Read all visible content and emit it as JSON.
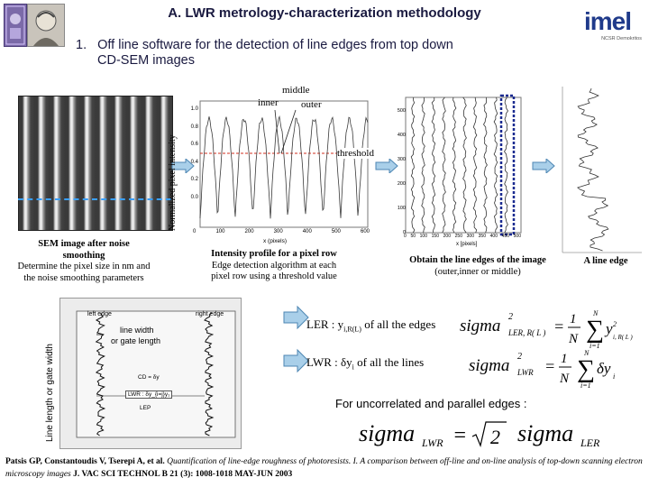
{
  "title": "A. LWR metrology-characterization methodology",
  "heading": {
    "number": "1.",
    "text_line1": "Off line  software for the detection of line edges from top down",
    "text_line2": "CD-SEM images"
  },
  "logos": {
    "left": "university-seal-logo",
    "right": "imel",
    "right_sub": "NCSR Demokritos"
  },
  "sem_panel": {
    "caption_bold1": "SEM image after noise",
    "caption_bold2": "smoothing",
    "caption_line1": "Determine the pixel size in nm and",
    "caption_line2": "the noise smoothing parameters"
  },
  "intensity_panel": {
    "ylabel": "Normalized pixel intensity",
    "xlabel": "x (pixels)",
    "annot_middle": "middle",
    "annot_inner": "inner",
    "annot_outer": "outer",
    "annot_threshold": "threshold",
    "yticks": [
      "1.0",
      "0.8",
      "0.6",
      "0.4",
      "0.2",
      "0.0"
    ],
    "xticks": [
      "0",
      "100",
      "200",
      "300",
      "400",
      "500",
      "600"
    ],
    "caption_bold": "Intensity profile for a pixel row",
    "caption_line1": "Edge detection algorithm at each",
    "caption_line2": "pixel row using a threshold value"
  },
  "edges_panel": {
    "xlabel": "x [pixels]",
    "yticks": [
      "500",
      "400",
      "300",
      "200",
      "100",
      "0"
    ],
    "xticks": [
      "0",
      "50",
      "100",
      "150",
      "200",
      "250",
      "300",
      "350",
      "400",
      "450",
      "500"
    ],
    "caption_bold": "Obtain the line edges of the image",
    "caption_line": "(outer,inner or middle)"
  },
  "single_edge_panel": {
    "caption_bold": "A line edge"
  },
  "lw_panel": {
    "ylabel": "Line length or gate width",
    "left_edge": "left edge",
    "right_edge": "right edge",
    "annot_width": "line width",
    "annot_width2": "or gate length",
    "cd": "CD = δy",
    "lwr": "LWR : δy_{i=j}y₁",
    "lep": "LEP"
  },
  "formulas": {
    "ler_label": "LER : y",
    "ler_sub": "i,R(L)",
    "ler_tail": " of all the edges",
    "lwr_label": "LWR : δy",
    "lwr_sub": "i",
    "lwr_tail": " of all the lines",
    "uncorrelated": "For uncorrelated and parallel edges :",
    "eq1_lhs": "sigma",
    "eq1_sup": "2",
    "eq1_sub": "LER, R( L )",
    "eq2_lhs": "sigma",
    "eq2_sup": "2",
    "eq2_sub": "LWR",
    "eq3_lhs": "sigma",
    "eq3_lhs_sub": "LWR",
    "eq3_rhs": "sigma",
    "eq3_rhs_sub": "LER"
  },
  "citation": {
    "authors": "Patsis GP, Constantoudis V, Tserepi A, et al.",
    "title": " Quantification of line-edge roughness of photoresists. I. A comparison between off-line and on-line analysis of top-down scanning electron microscopy images",
    "journal": " J. VAC SCI TECHNOL B 21 (3): 1008-1018 MAY-JUN 2003"
  },
  "colors": {
    "title": "#1a1a40",
    "arrow_fill": "#a9cfe9",
    "arrow_stroke": "#4d86b3",
    "threshold": "#d03020",
    "dashed_blue": "#3aa0ff",
    "dashed_navy": "#1a2a90"
  }
}
